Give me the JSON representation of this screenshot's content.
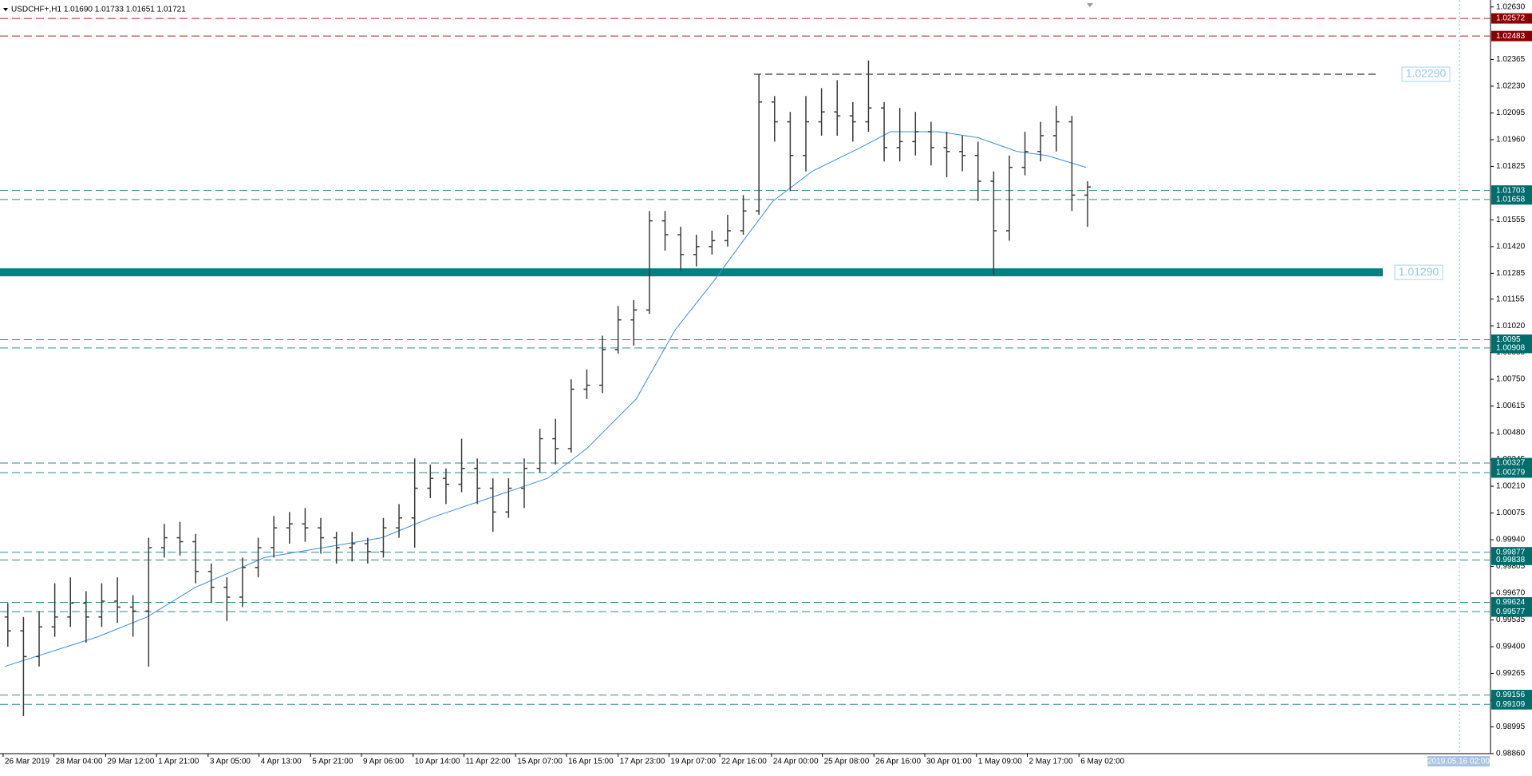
{
  "chart_data": {
    "type": "ohlc",
    "header": "USDCHF+,H1  1.01690 1.01733 1.01651 1.01721",
    "bar_color": "#3a3a3a",
    "x": [
      1,
      3,
      5,
      7,
      9,
      11,
      13,
      15,
      17,
      19,
      21,
      23,
      25,
      27,
      29,
      31,
      33,
      35,
      37,
      39,
      41,
      43,
      45,
      47,
      49,
      51,
      53,
      55,
      57,
      59,
      61,
      63,
      65,
      67,
      69,
      71,
      73,
      75,
      77,
      79,
      81,
      83,
      85,
      87,
      89,
      91,
      93,
      95,
      97,
      99,
      101,
      103,
      105,
      107,
      109,
      111,
      113,
      115,
      117,
      119,
      121,
      123,
      125,
      127,
      129,
      131,
      133,
      135,
      137,
      139
    ],
    "open": [
      0.9955,
      0.9948,
      0.9935,
      0.995,
      0.9955,
      0.9962,
      0.9955,
      0.9963,
      0.996,
      0.9958,
      0.999,
      0.9995,
      0.9993,
      0.9978,
      0.997,
      0.9965,
      0.998,
      0.999,
      1.0,
      1.0002,
      1.0,
      0.9995,
      0.999,
      0.9992,
      0.9988,
      1.0,
      1.0005,
      1.002,
      1.0025,
      1.0022,
      1.003,
      1.002,
      1.0008,
      1.002,
      1.003,
      1.0045,
      1.004,
      1.007,
      1.0072,
      1.009,
      1.0105,
      1.011,
      1.0155,
      1.0148,
      1.0138,
      1.0142,
      1.0145,
      1.015,
      1.016,
      1.0215,
      1.0205,
      1.0188,
      1.0205,
      1.021,
      1.0208,
      1.0205,
      1.0212,
      1.0192,
      1.0195,
      1.02,
      1.0192,
      1.019,
      1.0188,
      1.0175,
      1.015,
      1.0182,
      1.019,
      1.0198,
      1.0205,
      1.0168
    ],
    "high": [
      0.9962,
      0.9955,
      0.9958,
      0.9972,
      0.9975,
      0.9968,
      0.9972,
      0.9975,
      0.9966,
      0.9995,
      1.0002,
      1.0003,
      0.9997,
      0.9982,
      0.9975,
      0.9985,
      0.9995,
      1.0006,
      1.0008,
      1.001,
      1.0005,
      0.9998,
      0.9998,
      0.9995,
      1.0005,
      1.0012,
      1.0035,
      1.0032,
      1.003,
      1.0045,
      1.0035,
      1.0025,
      1.0025,
      1.0035,
      1.005,
      1.0055,
      1.0075,
      1.008,
      1.0097,
      1.0112,
      1.0115,
      1.016,
      1.016,
      1.0152,
      1.0148,
      1.015,
      1.0158,
      1.0168,
      1.0229,
      1.0218,
      1.021,
      1.0218,
      1.0222,
      1.0226,
      1.0215,
      1.0236,
      1.0215,
      1.0212,
      1.021,
      1.0205,
      1.02,
      1.0198,
      1.0195,
      1.018,
      1.0188,
      1.02,
      1.0205,
      1.0213,
      1.0208,
      1.0175
    ],
    "low": [
      0.994,
      0.9905,
      0.993,
      0.9945,
      0.995,
      0.9942,
      0.995,
      0.9952,
      0.9945,
      0.993,
      0.9985,
      0.9986,
      0.9972,
      0.9962,
      0.9953,
      0.996,
      0.9975,
      0.9985,
      0.9992,
      0.9993,
      0.9987,
      0.9982,
      0.9983,
      0.9982,
      0.9985,
      0.9995,
      0.999,
      1.0015,
      1.0012,
      1.0018,
      1.0012,
      0.9998,
      1.0005,
      1.001,
      1.0028,
      1.0032,
      1.0038,
      1.0065,
      1.0068,
      1.0088,
      1.0092,
      1.0108,
      1.014,
      1.013,
      1.0132,
      1.0138,
      1.0142,
      1.0148,
      1.0158,
      1.0195,
      1.017,
      1.018,
      1.0198,
      1.0198,
      1.0195,
      1.02,
      1.0185,
      1.0185,
      1.0188,
      1.0183,
      1.0177,
      1.018,
      1.0165,
      1.0128,
      1.0145,
      1.0178,
      1.0185,
      1.019,
      1.016,
      1.0152
    ],
    "close": [
      0.9948,
      0.9935,
      0.995,
      0.9955,
      0.9962,
      0.9955,
      0.9963,
      0.996,
      0.9958,
      0.999,
      0.9995,
      0.9993,
      0.9978,
      0.997,
      0.9965,
      0.998,
      0.999,
      1.0,
      1.0002,
      1.0,
      0.9995,
      0.999,
      0.9992,
      0.9988,
      1.0,
      1.0005,
      1.002,
      1.0025,
      1.0022,
      1.003,
      1.002,
      1.0008,
      1.002,
      1.003,
      1.0045,
      1.004,
      1.007,
      1.0072,
      1.009,
      1.0105,
      1.011,
      1.0155,
      1.0148,
      1.0138,
      1.0142,
      1.0145,
      1.015,
      1.016,
      1.0215,
      1.0205,
      1.0188,
      1.0205,
      1.021,
      1.0208,
      1.0205,
      1.0212,
      1.0192,
      1.0195,
      1.02,
      1.0192,
      1.019,
      1.0188,
      1.0175,
      1.015,
      1.0182,
      1.019,
      1.0198,
      1.0205,
      1.0168,
      1.01721
    ],
    "ma": {
      "color": "#3b8fd9",
      "x": [
        0.6,
        12.5,
        18.8,
        25,
        33.8,
        41.3,
        48.8,
        55,
        62.5,
        70,
        75,
        81.3,
        86.3,
        91.3,
        95,
        98.8,
        103.8,
        110,
        113.8,
        120,
        125,
        130,
        133.8,
        138.8
      ],
      "values": [
        0.993,
        0.9945,
        0.9955,
        0.997,
        0.9985,
        0.999,
        0.9995,
        1.0005,
        1.0015,
        1.0025,
        1.004,
        1.0065,
        1.01,
        1.0125,
        1.0145,
        1.0165,
        1.018,
        1.0192,
        1.02,
        1.02,
        1.0197,
        1.019,
        1.0188,
        1.0182
      ]
    },
    "xlim": [
      0,
      190.5
    ],
    "xticks": [
      {
        "value": 0.4,
        "label": "26 Mar 2019"
      },
      {
        "value": 6.9,
        "label": "28 Mar 04:00"
      },
      {
        "value": 13.5,
        "label": "29 Mar 12:00"
      },
      {
        "value": 20,
        "label": "1 Apr 21:00"
      },
      {
        "value": 26.6,
        "label": "3 Apr 05:00"
      },
      {
        "value": 33.1,
        "label": "4 Apr 13:00"
      },
      {
        "value": 39.7,
        "label": "5 Apr 21:00"
      },
      {
        "value": 46.2,
        "label": "9 Apr 06:00"
      },
      {
        "value": 52.8,
        "label": "10 Apr 14:00"
      },
      {
        "value": 59.3,
        "label": "11 Apr 22:00"
      },
      {
        "value": 65.9,
        "label": "15 Apr 07:00"
      },
      {
        "value": 72.4,
        "label": "16 Apr 15:00"
      },
      {
        "value": 79,
        "label": "17 Apr 23:00"
      },
      {
        "value": 85.5,
        "label": "19 Apr 07:00"
      },
      {
        "value": 92,
        "label": "22 Apr 16:00"
      },
      {
        "value": 98.6,
        "label": "24 Apr 00:00"
      },
      {
        "value": 105.1,
        "label": "25 Apr 08:00"
      },
      {
        "value": 111.7,
        "label": "26 Apr 16:00"
      },
      {
        "value": 118.2,
        "label": "30 Apr 01:00"
      },
      {
        "value": 124.8,
        "label": "1 May 09:00"
      },
      {
        "value": 131.3,
        "label": "2 May 17:00"
      },
      {
        "value": 137.9,
        "label": "6 May 02:00"
      }
    ],
    "time_marker": "2019.05.16 02:00",
    "ylim": [
      0.9886,
      1.02665
    ],
    "yticks": [
      {
        "value": 1.0263,
        "label": "1.02630"
      },
      1.02365,
      {
        "value": 1.0223,
        "label": "1.02230"
      },
      1.02095,
      {
        "value": 1.0196,
        "label": "1.01960"
      },
      1.01825,
      1.01555,
      {
        "value": 1.0142,
        "label": "1.01420"
      },
      1.01285,
      1.01155,
      {
        "value": 1.0102,
        "label": "1.01020"
      },
      1.00885,
      {
        "value": 1.0075,
        "label": "1.00750"
      },
      1.00615,
      {
        "value": 1.0048,
        "label": "1.00480"
      },
      1.00345,
      {
        "value": 1.0021,
        "label": "1.00210"
      },
      1.00075,
      {
        "value": 0.9994,
        "label": "0.99940"
      },
      0.99805,
      {
        "value": 0.9967,
        "label": "0.99670"
      },
      0.99535,
      {
        "value": 0.994,
        "label": "0.99400"
      },
      0.99265,
      {
        "value": 0.9913,
        "label": "0.99130"
      },
      0.98995,
      {
        "value": 0.9886,
        "label": "0.98860"
      }
    ],
    "levels": [
      {
        "price": 1.02572,
        "color": "#b22222",
        "box": "#8b0000"
      },
      {
        "price": 1.02483,
        "color": "#b22222",
        "box": "#8b0000"
      },
      {
        "price": 1.01703,
        "color": "#2e8b8b",
        "box": "#006d6d"
      },
      {
        "price": 1.01658,
        "color": "#2e8b8b",
        "box": "#006d6d"
      },
      {
        "price": 1.0095,
        "color": "#2e8b8b",
        "box": "#006d6d"
      },
      {
        "price": 1.00908,
        "color": "#2e8b8b",
        "box": "#006d6d"
      },
      {
        "price": 1.00327,
        "color": "#2e8b8b",
        "box": "#006d6d"
      },
      {
        "price": 1.00279,
        "color": "#2e8b8b",
        "box": "#006d6d"
      },
      {
        "price": 0.99877,
        "color": "#2e8b8b",
        "box": "#006d6d"
      },
      {
        "price": 0.99838,
        "color": "#2e8b8b",
        "box": "#006d6d"
      },
      {
        "price": 0.99624,
        "color": "#2e8b8b",
        "box": "#006d6d"
      },
      {
        "price": 0.99577,
        "color": "#2e8b8b",
        "box": "#006d6d"
      },
      {
        "price": 0.99156,
        "color": "#2e8b8b",
        "box": "#006d6d"
      },
      {
        "price": 0.99109,
        "color": "#2e8b8b",
        "box": "#006d6d"
      }
    ],
    "marked_levels": [
      {
        "price": {
          "value": 1.0229,
          "label": "1.02290"
        },
        "color": "#333333",
        "style": "dash"
      },
      {
        "price": {
          "value": 1.0129,
          "label": "1.01290"
        },
        "color": "#008080",
        "style": "solid"
      }
    ]
  }
}
